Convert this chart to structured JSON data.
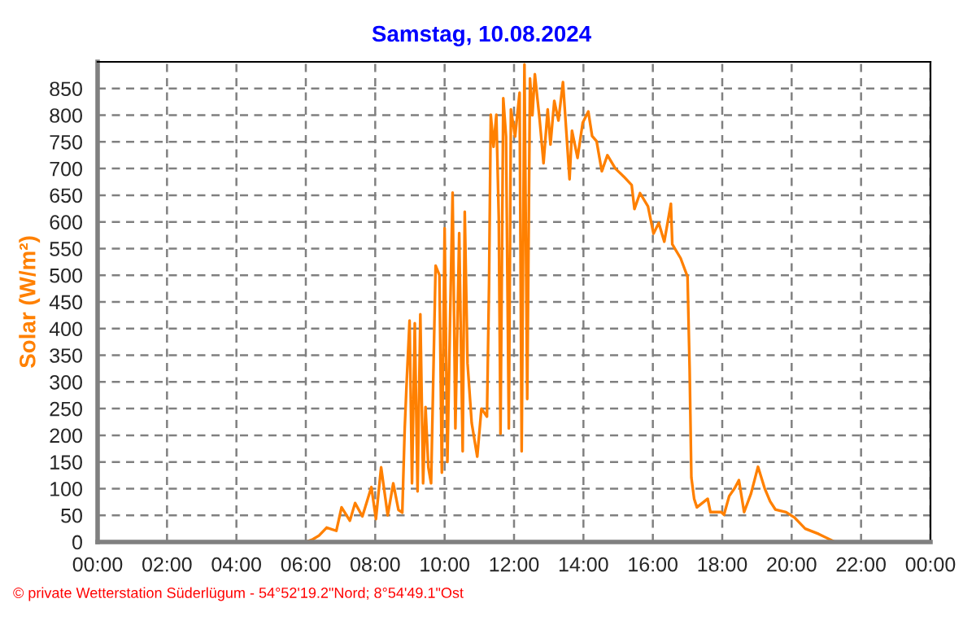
{
  "chart_data": {
    "type": "line",
    "title": "Samstag, 10.08.2024",
    "ylabel": "Solar (W/m²)",
    "annotations": [
      "© private Wetterstation Süderlügum - 54°52'19.2\"Nord; 8°54'49.1\"Ost"
    ],
    "series": [
      {
        "color": "#ff8000",
        "x": [
          0,
          6.0,
          6.2,
          6.38,
          6.6,
          6.88,
          7.03,
          7.27,
          7.42,
          7.63,
          7.89,
          8.02,
          8.17,
          8.36,
          8.52,
          8.67,
          8.78,
          8.85,
          8.91,
          8.99,
          9.06,
          9.14,
          9.22,
          9.3,
          9.38,
          9.45,
          9.53,
          9.61,
          9.74,
          9.85,
          9.92,
          10.0,
          10.08,
          10.16,
          10.23,
          10.31,
          10.42,
          10.52,
          10.58,
          10.66,
          10.78,
          10.94,
          11.06,
          11.22,
          11.28,
          11.33,
          11.41,
          11.49,
          11.56,
          11.61,
          11.69,
          11.77,
          11.85,
          11.91,
          12.03,
          12.16,
          12.22,
          12.3,
          12.38,
          12.46,
          12.53,
          12.6,
          12.74,
          12.85,
          12.97,
          13.05,
          13.16,
          13.28,
          13.41,
          13.6,
          13.67,
          13.83,
          13.98,
          14.14,
          14.25,
          14.38,
          14.53,
          14.69,
          14.92,
          15.16,
          15.39,
          15.47,
          15.63,
          15.86,
          16.02,
          16.17,
          16.33,
          16.52,
          16.56,
          16.8,
          17.0,
          17.06,
          17.11,
          17.19,
          17.27,
          17.58,
          17.66,
          17.97,
          18.05,
          18.2,
          18.36,
          18.48,
          18.63,
          18.83,
          19.03,
          19.22,
          19.38,
          19.53,
          19.84,
          20.08,
          20.39,
          20.78,
          21.25
        ],
        "values": [
          0,
          0,
          5,
          12,
          27,
          21,
          65,
          40,
          73,
          48,
          103,
          43,
          140,
          50,
          110,
          60,
          55,
          213,
          305,
          415,
          110,
          410,
          95,
          427,
          110,
          253,
          140,
          110,
          518,
          500,
          130,
          588,
          150,
          427,
          655,
          213,
          579,
          170,
          619,
          335,
          223,
          160,
          250,
          235,
          484,
          801,
          741,
          801,
          608,
          203,
          832,
          760,
          213,
          811,
          760,
          842,
          170,
          895,
          268,
          869,
          800,
          877,
          790,
          710,
          811,
          745,
          827,
          790,
          862,
          680,
          771,
          720,
          786,
          807,
          761,
          751,
          695,
          725,
          700,
          685,
          669,
          624,
          654,
          629,
          578,
          598,
          563,
          634,
          558,
          532,
          497,
          324,
          121,
          81,
          65,
          81,
          56,
          56,
          51,
          86,
          101,
          116,
          56,
          91,
          141,
          101,
          76,
          61,
          56,
          46,
          25,
          15,
          0
        ]
      }
    ],
    "xlim": [
      0,
      24
    ],
    "xticks": [
      {
        "value": 0,
        "label": "00:00"
      },
      {
        "value": 2,
        "label": "02:00"
      },
      {
        "value": 4,
        "label": "04:00"
      },
      {
        "value": 6,
        "label": "06:00"
      },
      {
        "value": 8,
        "label": "08:00"
      },
      {
        "value": 10,
        "label": "10:00"
      },
      {
        "value": 12,
        "label": "12:00"
      },
      {
        "value": 14,
        "label": "14:00"
      },
      {
        "value": 16,
        "label": "16:00"
      },
      {
        "value": 18,
        "label": "18:00"
      },
      {
        "value": 20,
        "label": "20:00"
      },
      {
        "value": 22,
        "label": "22:00"
      },
      {
        "value": 24,
        "label": "00:00"
      }
    ],
    "ylim": [
      0,
      900
    ],
    "yticks": [
      0,
      50,
      100,
      150,
      200,
      250,
      300,
      350,
      400,
      450,
      500,
      550,
      600,
      650,
      700,
      750,
      800,
      850
    ],
    "grid": true,
    "legend": false,
    "marker": "none",
    "line_style": "solid"
  }
}
